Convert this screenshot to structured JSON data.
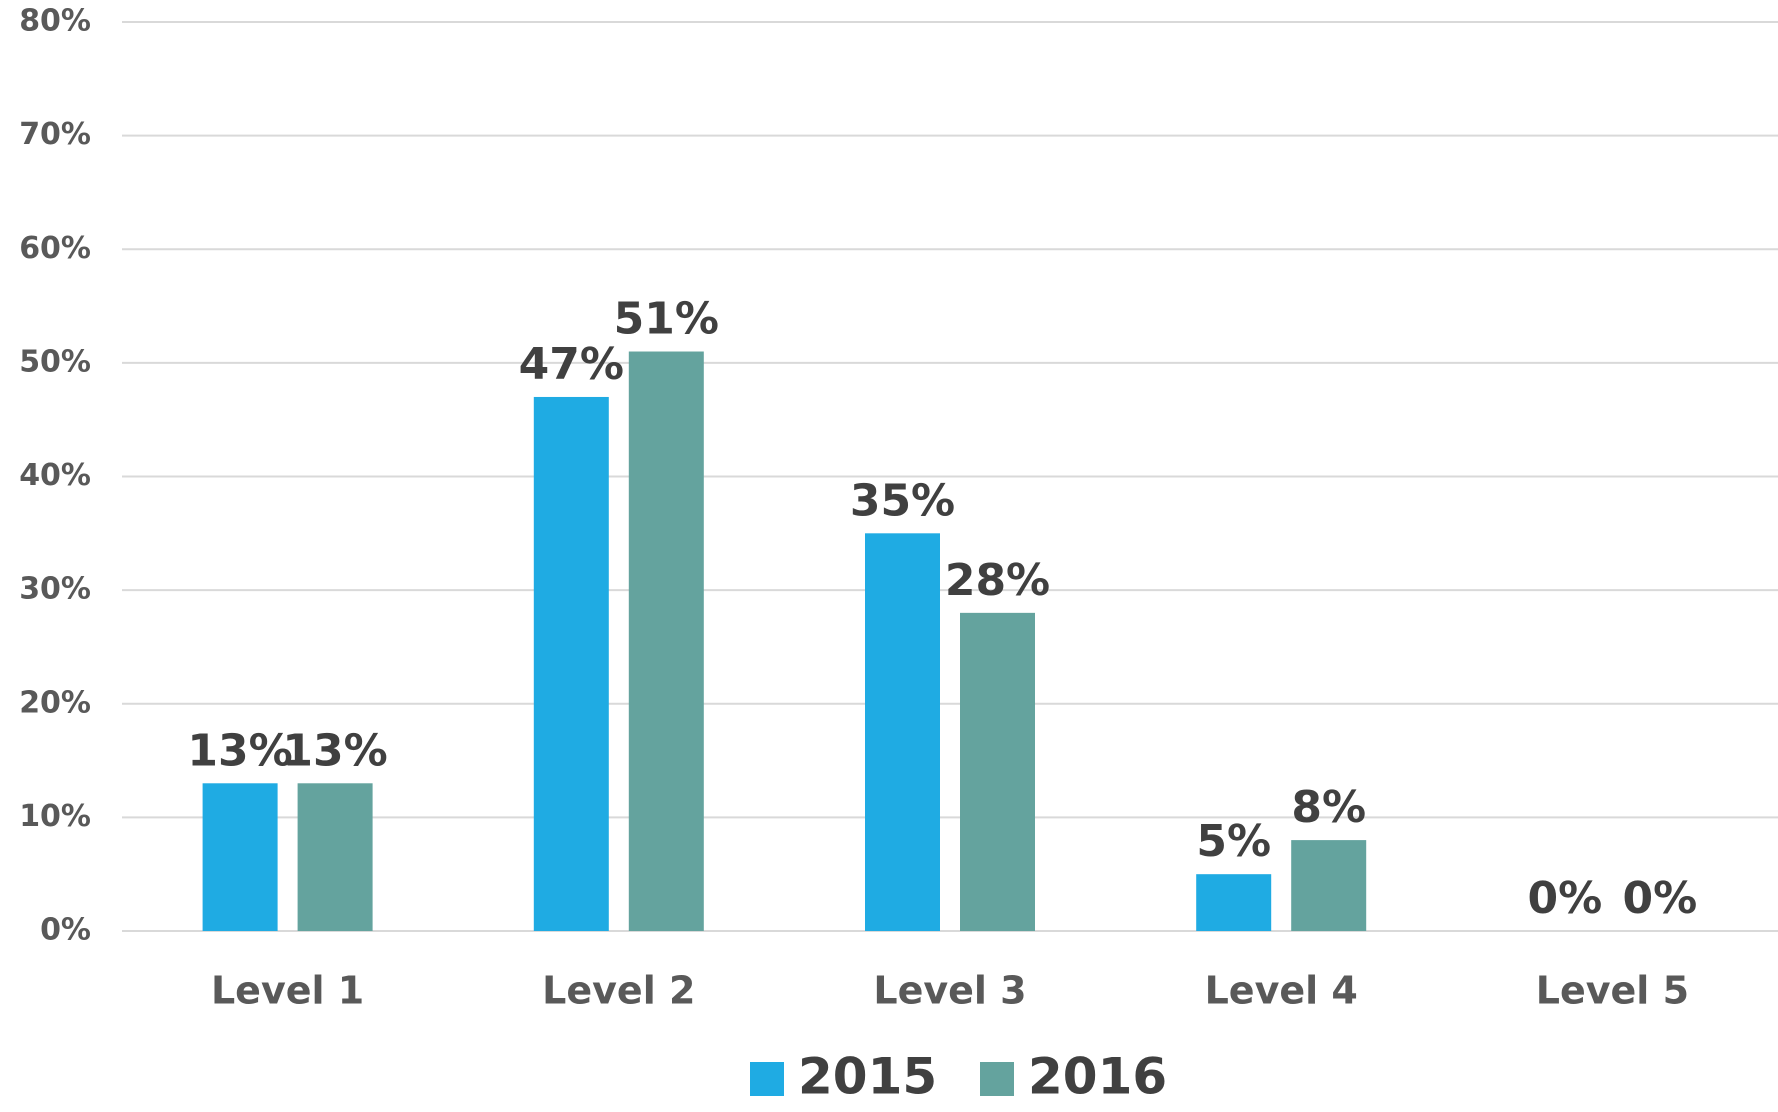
{
  "chart_data": {
    "type": "bar",
    "categories": [
      "Level 1",
      "Level 2",
      "Level 3",
      "Level 4",
      "Level 5"
    ],
    "series": [
      {
        "name": "2015",
        "color": "#1fabe3",
        "values": [
          13,
          47,
          35,
          5,
          0
        ],
        "value_labels": [
          "13%",
          "47%",
          "35%",
          "5%",
          "0%"
        ]
      },
      {
        "name": "2016",
        "color": "#64a39e",
        "values": [
          13,
          51,
          28,
          8,
          0
        ],
        "value_labels": [
          "13%",
          "51%",
          "28%",
          "8%",
          "0%"
        ]
      }
    ],
    "ylim": [
      0,
      80
    ],
    "yticks": [
      {
        "value": 0,
        "label": "0%"
      },
      {
        "value": 10,
        "label": "10%"
      },
      {
        "value": 20,
        "label": "20%"
      },
      {
        "value": 30,
        "label": "30%"
      },
      {
        "value": 40,
        "label": "40%"
      },
      {
        "value": 50,
        "label": "50%"
      },
      {
        "value": 60,
        "label": "60%"
      },
      {
        "value": 70,
        "label": "70%"
      },
      {
        "value": 80,
        "label": "80%"
      }
    ],
    "grid": true,
    "legend": "bottom"
  }
}
